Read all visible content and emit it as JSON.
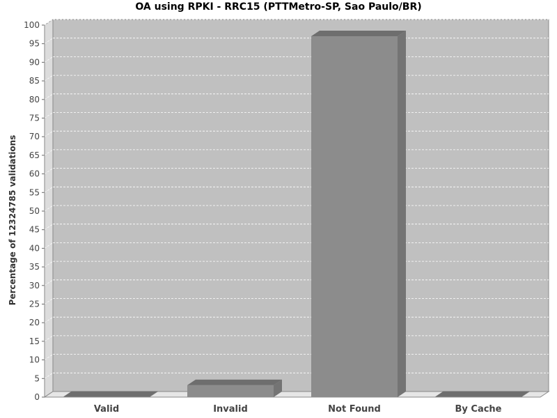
{
  "chart_data": {
    "type": "bar",
    "title": "OA using RPKI - RRC15 (PTTMetro-SP, Sao Paulo/BR)",
    "xlabel": "",
    "ylabel": "Percentage of 12324785 validations",
    "categories": [
      "Valid",
      "Invalid",
      "Not Found",
      "By Cache"
    ],
    "values": [
      0,
      3.2,
      97,
      0
    ],
    "ylim": [
      0,
      100
    ],
    "ytick_step": 5,
    "grid": true,
    "colors": {
      "plot_background": "#c0c0c0",
      "bar": "#8c8c8c",
      "bar_top": "#6e6e6e",
      "bar_side": "#747474",
      "grid": "#ffffff"
    }
  }
}
